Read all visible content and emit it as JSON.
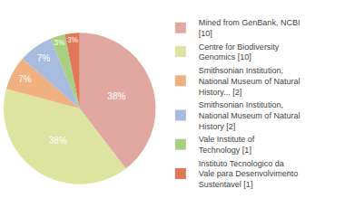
{
  "chart_data": {
    "type": "pie",
    "categories": [
      "Mined from GenBank, NCBI [10]",
      "Centre for Biodiversity Genomics [10]",
      "Smithsonian Institution, National Museum of Natural History... [2]",
      "Smithsonian Institution, National Museum of Natural History [2]",
      "Vale Institute of Technology [1]",
      "Instituto Tecnologico da Vale para Desenvolvimento Sustentavel [1]"
    ],
    "values": [
      38,
      38,
      7,
      7,
      3,
      3
    ],
    "value_labels": [
      "38%",
      "38%",
      "7%",
      "7%",
      "3%",
      "3%"
    ],
    "colors": [
      "#e0a8a0",
      "#dce4a0",
      "#f0b080",
      "#a8bce0",
      "#a8d080",
      "#e07858"
    ],
    "data_labels": true,
    "legend": "right"
  }
}
